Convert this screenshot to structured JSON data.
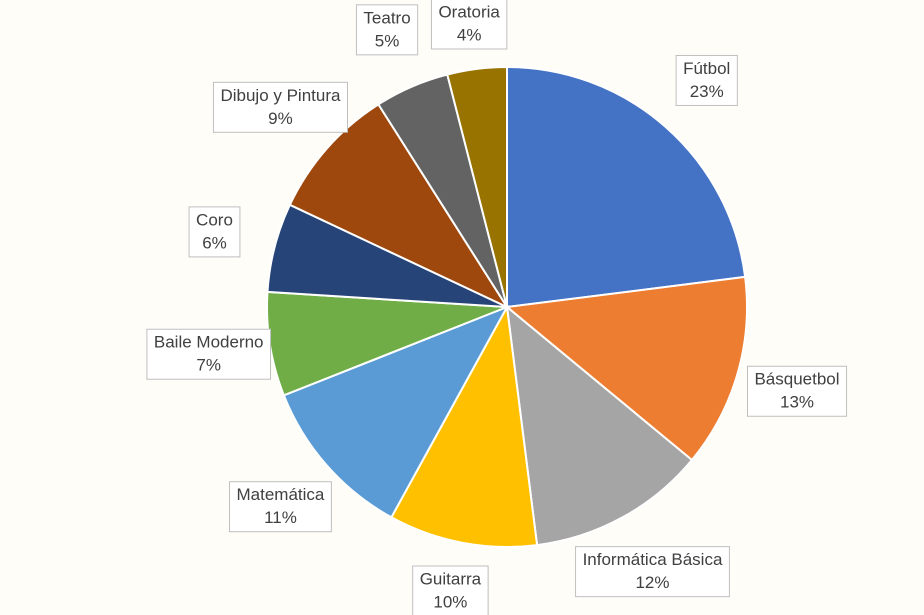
{
  "chart_data": {
    "type": "pie",
    "categories": [
      "Fútbol",
      "Básquetbol",
      "Informática Básica",
      "Guitarra",
      "Matemática",
      "Baile Moderno",
      "Coro",
      "Dibujo y Pintura",
      "Teatro",
      "Oratoria"
    ],
    "values": [
      23,
      13,
      12,
      10,
      11,
      7,
      6,
      9,
      5,
      4
    ],
    "value_labels": [
      "23%",
      "13%",
      "12%",
      "10%",
      "11%",
      "7%",
      "6%",
      "9%",
      "5%",
      "4%"
    ],
    "colors": [
      "#4472c4",
      "#ed7d31",
      "#a5a5a5",
      "#ffc000",
      "#5b9bd5",
      "#70ad47",
      "#264478",
      "#9e480e",
      "#636363",
      "#997300"
    ]
  }
}
